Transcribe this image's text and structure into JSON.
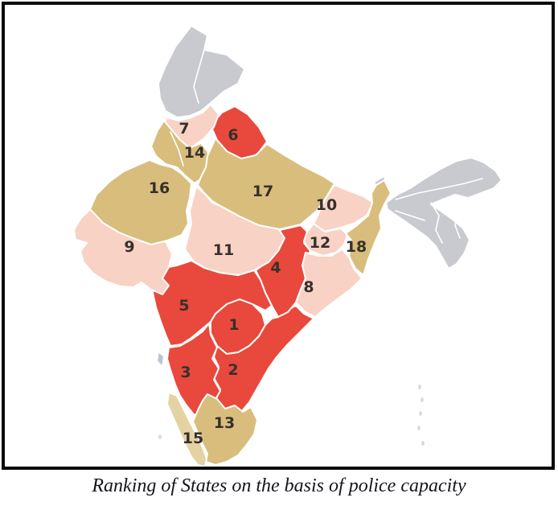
{
  "figure": {
    "caption": "Ranking of States on the basis of police capacity"
  },
  "map": {
    "colors": {
      "red": "#e8493c",
      "pink": "#f8d2c4",
      "tan": "#d9bd7c",
      "tan_light": "#e4d2a2",
      "gray": "#c8cacf",
      "gray_blue": "#b9c3d2",
      "island_gray": "#d6d8dc",
      "state_border": "#ffffff",
      "frame_border": "#0b0b0b",
      "label_text": "#35302c"
    },
    "states": [
      {
        "rank": "1",
        "color": "red"
      },
      {
        "rank": "2",
        "color": "red"
      },
      {
        "rank": "3",
        "color": "red"
      },
      {
        "rank": "4",
        "color": "red"
      },
      {
        "rank": "5",
        "color": "red"
      },
      {
        "rank": "6",
        "color": "red"
      },
      {
        "rank": "7",
        "color": "pink"
      },
      {
        "rank": "8",
        "color": "pink"
      },
      {
        "rank": "9",
        "color": "pink"
      },
      {
        "rank": "10",
        "color": "pink"
      },
      {
        "rank": "11",
        "color": "pink"
      },
      {
        "rank": "12",
        "color": "pink"
      },
      {
        "rank": "13",
        "color": "tan"
      },
      {
        "rank": "14",
        "color": "tan"
      },
      {
        "rank": "15",
        "color": "tan_light"
      },
      {
        "rank": "16",
        "color": "tan"
      },
      {
        "rank": "17",
        "color": "tan"
      },
      {
        "rank": "18",
        "color": "tan"
      }
    ],
    "unranked_color": "gray"
  }
}
